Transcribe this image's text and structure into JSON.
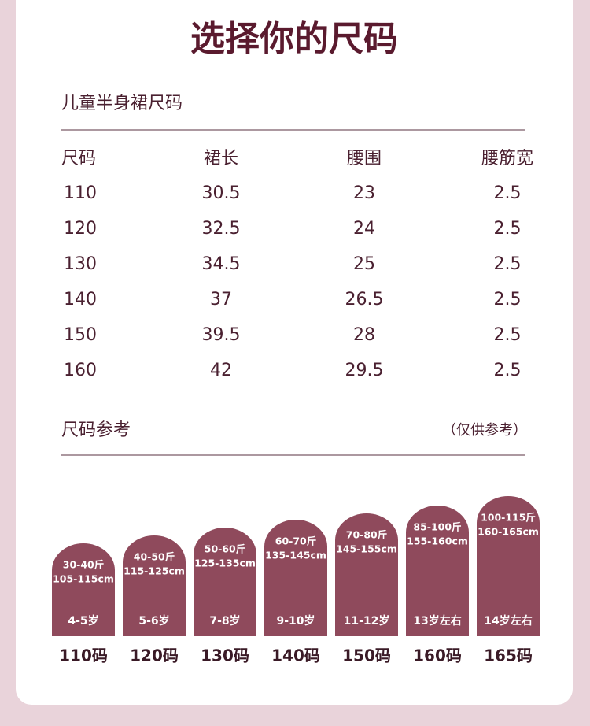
{
  "header": {
    "title": "选择你的尺码"
  },
  "table": {
    "title": "儿童半身裙尺码",
    "columns": [
      "尺码",
      "裙长",
      "腰围",
      "腰筋宽"
    ],
    "rows": [
      [
        "110",
        "30.5",
        "23",
        "2.5"
      ],
      [
        "120",
        "32.5",
        "24",
        "2.5"
      ],
      [
        "130",
        "34.5",
        "25",
        "2.5"
      ],
      [
        "140",
        "37",
        "26.5",
        "2.5"
      ],
      [
        "150",
        "39.5",
        "28",
        "2.5"
      ],
      [
        "160",
        "42",
        "29.5",
        "2.5"
      ]
    ]
  },
  "reference": {
    "title": "尺码参考",
    "note": "（仅供参考）",
    "items": [
      {
        "weight": "30-40斤",
        "height": "105-115cm",
        "age": "4-5岁",
        "size": "110码"
      },
      {
        "weight": "40-50斤",
        "height": "115-125cm",
        "age": "5-6岁",
        "size": "120码"
      },
      {
        "weight": "50-60斤",
        "height": "125-135cm",
        "age": "7-8岁",
        "size": "130码"
      },
      {
        "weight": "60-70斤",
        "height": "135-145cm",
        "age": "9-10岁",
        "size": "140码"
      },
      {
        "weight": "70-80斤",
        "height": "145-155cm",
        "age": "11-12岁",
        "size": "150码"
      },
      {
        "weight": "85-100斤",
        "height": "155-160cm",
        "age": "13岁左右",
        "size": "160码"
      },
      {
        "weight": "100-115斤",
        "height": "160-165cm",
        "age": "14岁左右",
        "size": "165码"
      }
    ]
  }
}
